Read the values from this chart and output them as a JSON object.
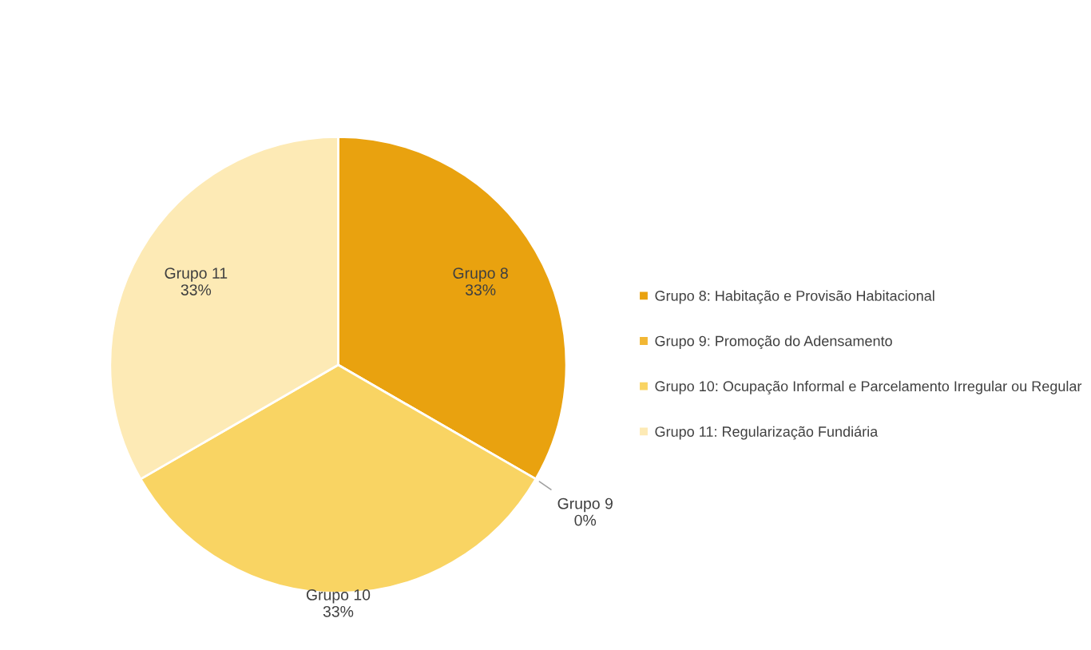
{
  "chart_data": {
    "type": "pie",
    "categories": [
      "Grupo 8: Habitação e Provisão Habitacional",
      "Grupo 9: Promoção do Adensamento",
      "Grupo 10: Ocupação Informal e Parcelamento Irregular ou Regular",
      "Grupo 11: Regularização Fundiária"
    ],
    "values": [
      33,
      0,
      33,
      33
    ],
    "colors": [
      "#e9a20f",
      "#f2b734",
      "#f9d463",
      "#fdeab5"
    ],
    "value_labels": [
      "Grupo 8\n33%",
      "Grupo 9\n0%",
      "Grupo 10\n33%",
      "Grupo 11\n33%"
    ],
    "legend": "right"
  }
}
